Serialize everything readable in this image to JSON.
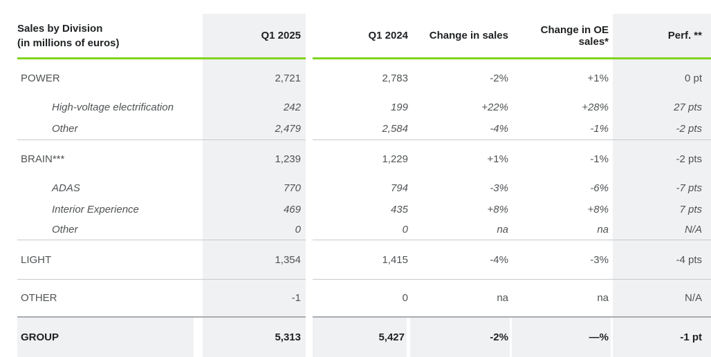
{
  "colors": {
    "accent_green": "#80d41e",
    "column_bg": "#f0f1f3",
    "separator": "#c6c8ca",
    "group_border": "#a9abae",
    "text_primary": "#4f5254",
    "text_dark": "#1e2022"
  },
  "header": {
    "title_line1": "Sales by Division",
    "title_line2": "(in millions of euros)",
    "columns": {
      "q1_2025": "Q1 2025",
      "q1_2024": "Q1 2024",
      "change_sales": "Change in sales",
      "change_oe_line1": "Change in OE",
      "change_oe_line2": "sales*",
      "perf": "Perf. **"
    }
  },
  "rows": [
    {
      "label": "POWER",
      "q1_2025": "2,721",
      "q1_2024": "2,783",
      "change_sales": "-2%",
      "change_oe": "+1%",
      "perf": "0 pt"
    },
    {
      "label": "High-voltage electrification",
      "q1_2025": "242",
      "q1_2024": "199",
      "change_sales": "+22%",
      "change_oe": "+28%",
      "perf": "27 pts"
    },
    {
      "label": "Other",
      "q1_2025": "2,479",
      "q1_2024": "2,584",
      "change_sales": "-4%",
      "change_oe": "-1%",
      "perf": "-2 pts"
    },
    {
      "label": "BRAIN***",
      "q1_2025": "1,239",
      "q1_2024": "1,229",
      "change_sales": "+1%",
      "change_oe": "-1%",
      "perf": "-2 pts"
    },
    {
      "label": "ADAS",
      "q1_2025": "770",
      "q1_2024": "794",
      "change_sales": "-3%",
      "change_oe": "-6%",
      "perf": "-7 pts"
    },
    {
      "label": "Interior Experience",
      "q1_2025": "469",
      "q1_2024": "435",
      "change_sales": "+8%",
      "change_oe": "+8%",
      "perf": "7 pts"
    },
    {
      "label": "Other",
      "q1_2025": "0",
      "q1_2024": "0",
      "change_sales": "na",
      "change_oe": "na",
      "perf": "N/A"
    },
    {
      "label": "LIGHT",
      "q1_2025": "1,354",
      "q1_2024": "1,415",
      "change_sales": "-4%",
      "change_oe": "-3%",
      "perf": "-4 pts"
    },
    {
      "label": "OTHER",
      "q1_2025": "-1",
      "q1_2024": "0",
      "change_sales": "na",
      "change_oe": "na",
      "perf": "N/A"
    },
    {
      "label": "GROUP",
      "q1_2025": "5,313",
      "q1_2024": "5,427",
      "change_sales": "-2%",
      "change_oe": "—%",
      "perf": "-1 pt"
    }
  ]
}
